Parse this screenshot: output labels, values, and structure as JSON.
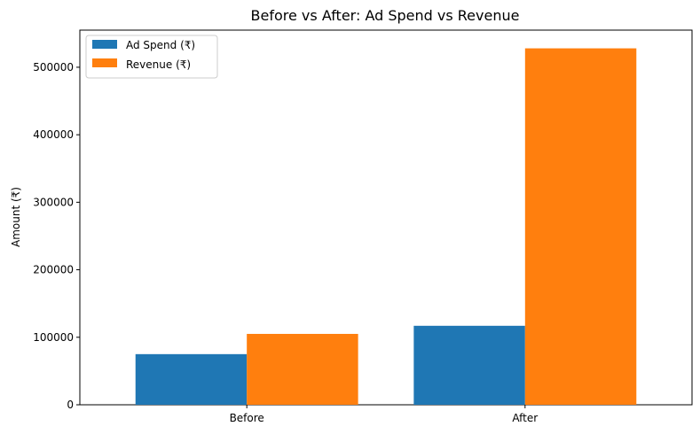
{
  "chart_data": {
    "type": "bar",
    "title": "Before vs After: Ad Spend vs Revenue",
    "xlabel": "",
    "ylabel": "Amount (₹)",
    "categories": [
      "Before",
      "After"
    ],
    "series": [
      {
        "name": "Ad Spend (₹)",
        "color": "#1f77b4",
        "values": [
          75000,
          117000
        ]
      },
      {
        "name": "Revenue (₹)",
        "color": "#ff7f0e",
        "values": [
          105000,
          528000
        ]
      }
    ],
    "ylim": [
      0,
      555000
    ],
    "yticks": [
      "0",
      "100000",
      "200000",
      "300000",
      "400000",
      "500000"
    ],
    "grid": false,
    "legend_position": "top-left"
  }
}
